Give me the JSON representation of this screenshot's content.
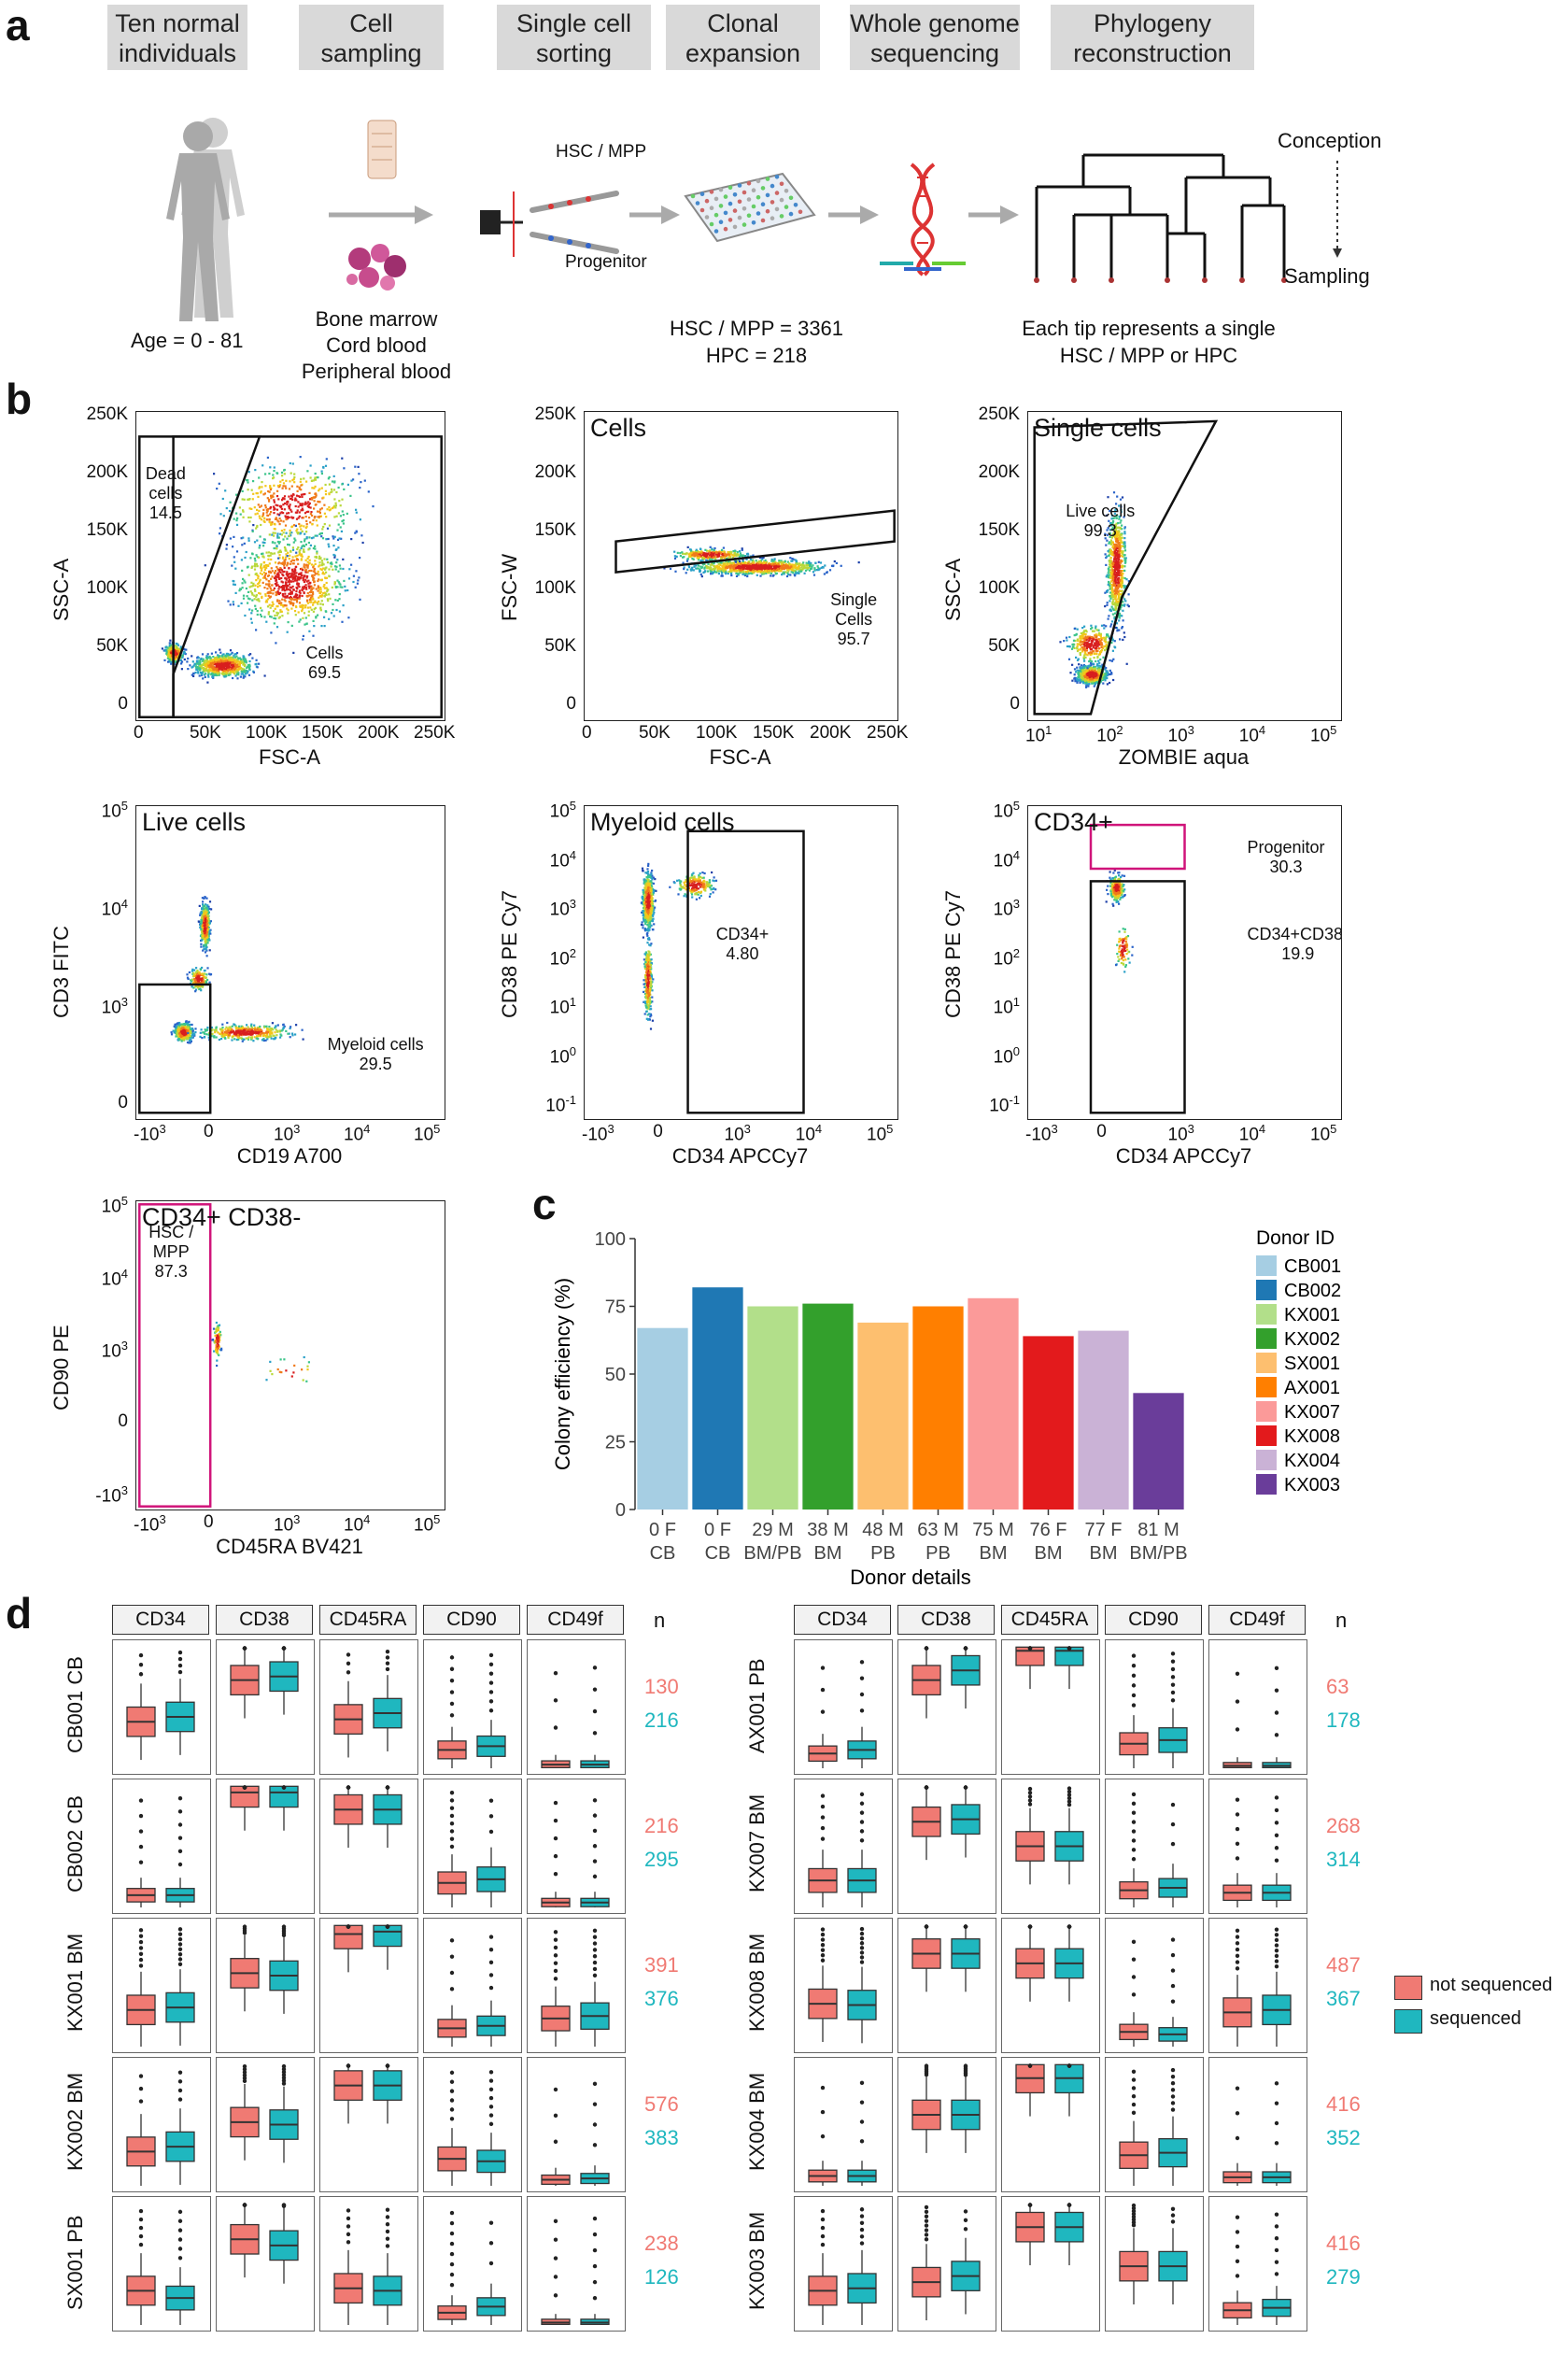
{
  "panel_a": {
    "letter": "a",
    "steps": [
      {
        "label_line1": "Ten normal",
        "label_line2": "individuals"
      },
      {
        "label_line1": "Cell",
        "label_line2": "sampling"
      },
      {
        "label_line1": "Single cell",
        "label_line2": "sorting"
      },
      {
        "label_line1": "Clonal",
        "label_line2": "expansion"
      },
      {
        "label_line1": "Whole genome",
        "label_line2": "sequencing"
      },
      {
        "label_line1": "Phylogeny",
        "label_line2": "reconstruction"
      }
    ],
    "age_text": "Age = 0 - 81",
    "sample_types": [
      "Bone marrow",
      "Cord blood",
      "Peripheral blood"
    ],
    "sort_hsc": "HSC / MPP",
    "sort_prog": "Progenitor",
    "counts_hsc": "HSC / MPP = 3361",
    "counts_hpc": "HPC = 218",
    "tip_line1": "Each tip represents a single",
    "tip_line2": "HSC / MPP or HPC",
    "conception": "Conception",
    "sampling": "Sampling"
  },
  "panel_b": {
    "letter": "b",
    "plots": [
      {
        "title": "",
        "xlabel": "FSC-A",
        "ylabel": "SSC-A",
        "yticks": [
          "250K",
          "200K",
          "150K",
          "100K",
          "50K",
          "0"
        ],
        "xticks": [
          "0",
          "50K",
          "100K",
          "150K",
          "200K",
          "250K"
        ],
        "gates": [
          {
            "name": "Dead",
            "l2": "cells",
            "val": "14.5"
          },
          {
            "name": "Cells",
            "val": "69.5"
          }
        ]
      },
      {
        "title": "Cells",
        "xlabel": "FSC-A",
        "ylabel": "FSC-W",
        "yticks": [
          "250K",
          "200K",
          "150K",
          "100K",
          "50K",
          "0"
        ],
        "xticks": [
          "0",
          "50K",
          "100K",
          "150K",
          "200K",
          "250K"
        ],
        "gates": [
          {
            "name": "Single Cells",
            "val": "95.7"
          }
        ]
      },
      {
        "title": "Single cells",
        "xlabel": "ZOMBIE aqua",
        "ylabel": "SSC-A",
        "yticks": [
          "250K",
          "200K",
          "150K",
          "100K",
          "50K",
          "0"
        ],
        "xticks": [
          "10",
          "10",
          "10",
          "10",
          "10"
        ],
        "xexp": [
          "1",
          "2",
          "3",
          "4",
          "5"
        ],
        "gates": [
          {
            "name": "Live cells",
            "val": "99.3"
          }
        ]
      },
      {
        "title": "Live cells",
        "xlabel": "CD19 A700",
        "ylabel": "CD3 FITC",
        "yticks": [
          "10",
          "10",
          "10",
          "0"
        ],
        "yexp": [
          "5",
          "4",
          "3",
          ""
        ],
        "xticks": [
          "-10",
          "0",
          "10",
          "10",
          "10"
        ],
        "xexp": [
          "3",
          "",
          "3",
          "4",
          "5"
        ],
        "gates": [
          {
            "name": "Myeloid cells",
            "val": "29.5"
          }
        ]
      },
      {
        "title": "Myeloid cells",
        "xlabel": "CD34 APCCy7",
        "ylabel": "CD38 PE Cy7",
        "yticks": [
          "10",
          "10",
          "10",
          "10",
          "10",
          "10",
          "10"
        ],
        "yexp": [
          "5",
          "4",
          "3",
          "2",
          "1",
          "0",
          "-1"
        ],
        "xticks": [
          "-10",
          "0",
          "10",
          "10",
          "10"
        ],
        "xexp": [
          "3",
          "",
          "3",
          "4",
          "5"
        ],
        "gates": [
          {
            "name": "CD34+",
            "val": "4.80"
          }
        ]
      },
      {
        "title": "CD34+",
        "xlabel": "CD34 APCCy7",
        "ylabel": "CD38 PE Cy7",
        "yticks": [
          "10",
          "10",
          "10",
          "10",
          "10",
          "10",
          "10"
        ],
        "yexp": [
          "5",
          "4",
          "3",
          "2",
          "1",
          "0",
          "-1"
        ],
        "xticks": [
          "-10",
          "0",
          "10",
          "10",
          "10"
        ],
        "xexp": [
          "3",
          "",
          "3",
          "4",
          "5"
        ],
        "gates": [
          {
            "name": "Progenitor",
            "val": "30.3"
          },
          {
            "name": "CD34+CD38-",
            "val": "19.9"
          }
        ]
      },
      {
        "title": "CD34+ CD38-",
        "xlabel": "CD45RA BV421",
        "ylabel": "CD90 PE",
        "yticks": [
          "10",
          "10",
          "10",
          "0",
          "-10"
        ],
        "yexp": [
          "5",
          "4",
          "3",
          "",
          "3"
        ],
        "xticks": [
          "-10",
          "0",
          "10",
          "10",
          "10"
        ],
        "xexp": [
          "3",
          "",
          "3",
          "4",
          "5"
        ],
        "gates": [
          {
            "name": "HSC /",
            "l2": "MPP",
            "val": "87.3"
          }
        ]
      }
    ]
  },
  "panel_c": {
    "letter": "c"
  },
  "chart_data": [
    {
      "type": "bar",
      "ylabel": "Colony efficiency (%)",
      "xlabel": "Donor details",
      "ylim": [
        0,
        100
      ],
      "yticks": [
        0,
        25,
        50,
        75,
        100
      ],
      "categories": [
        "CB001",
        "CB002",
        "KX001",
        "KX002",
        "SX001",
        "AX001",
        "KX007",
        "KX008",
        "KX004",
        "KX003"
      ],
      "xlab_line1": [
        "0 F",
        "0 F",
        "29 M",
        "38 M",
        "48 M",
        "63 M",
        "75 M",
        "76 F",
        "77 F",
        "81 M"
      ],
      "xlab_line2": [
        "CB",
        "CB",
        "BM/PB",
        "BM",
        "PB",
        "PB",
        "BM",
        "BM",
        "BM",
        "BM/PB"
      ],
      "values": [
        67,
        82,
        75,
        76,
        69,
        75,
        78,
        64,
        66,
        43
      ],
      "colors": [
        "#a6cee3",
        "#1f78b4",
        "#b2df8a",
        "#33a02c",
        "#fdbf6f",
        "#ff7f00",
        "#fb9a99",
        "#e31a1c",
        "#cab2d6",
        "#6a3d9a"
      ],
      "legend_title": "Donor ID"
    },
    {
      "type": "boxplot",
      "markers": [
        "CD34",
        "CD38",
        "CD45RA",
        "CD90",
        "CD49f"
      ],
      "n_label": "n",
      "legend": [
        {
          "name": "not sequenced",
          "color": "#f07a73"
        },
        {
          "name": "sequenced",
          "color": "#1fb7bf"
        }
      ],
      "rows_left": [
        {
          "label": "CB001 CB",
          "n_not": "130",
          "n_seq": "216",
          "med": [
            [
              0.38,
              0.42
            ],
            [
              0.72,
              0.75
            ],
            [
              0.4,
              0.45
            ],
            [
              0.15,
              0.18
            ],
            [
              0.03,
              0.03
            ]
          ]
        },
        {
          "label": "CB002 CB",
          "n_not": "216",
          "n_seq": "295",
          "med": [
            [
              0.1,
              0.1
            ],
            [
              0.94,
              0.94
            ],
            [
              0.8,
              0.8
            ],
            [
              0.2,
              0.23
            ],
            [
              0.04,
              0.04
            ]
          ]
        },
        {
          "label": "KX001 BM",
          "n_not": "391",
          "n_seq": "376",
          "med": [
            [
              0.3,
              0.32
            ],
            [
              0.6,
              0.58
            ],
            [
              0.92,
              0.94
            ],
            [
              0.15,
              0.17
            ],
            [
              0.23,
              0.25
            ]
          ]
        },
        {
          "label": "KX002 BM",
          "n_not": "576",
          "n_seq": "383",
          "med": [
            [
              0.28,
              0.32
            ],
            [
              0.52,
              0.5
            ],
            [
              0.82,
              0.82
            ],
            [
              0.22,
              0.2
            ],
            [
              0.05,
              0.06
            ]
          ]
        },
        {
          "label": "SX001 PB",
          "n_not": "238",
          "n_seq": "126",
          "med": [
            [
              0.28,
              0.22
            ],
            [
              0.7,
              0.65
            ],
            [
              0.3,
              0.28
            ],
            [
              0.1,
              0.15
            ],
            [
              0.02,
              0.02
            ]
          ]
        }
      ],
      "rows_right": [
        {
          "label": "AX001 PB",
          "n_not": "63",
          "n_seq": "178",
          "med": [
            [
              0.12,
              0.15
            ],
            [
              0.72,
              0.8
            ],
            [
              0.96,
              0.96
            ],
            [
              0.2,
              0.23
            ],
            [
              0.02,
              0.02
            ]
          ]
        },
        {
          "label": "KX007 BM",
          "n_not": "268",
          "n_seq": "314",
          "med": [
            [
              0.22,
              0.22
            ],
            [
              0.7,
              0.72
            ],
            [
              0.5,
              0.5
            ],
            [
              0.14,
              0.16
            ],
            [
              0.12,
              0.12
            ]
          ]
        },
        {
          "label": "KX008 BM",
          "n_not": "487",
          "n_seq": "367",
          "med": [
            [
              0.35,
              0.34
            ],
            [
              0.76,
              0.76
            ],
            [
              0.68,
              0.68
            ],
            [
              0.12,
              0.1
            ],
            [
              0.28,
              0.3
            ]
          ]
        },
        {
          "label": "KX004 BM",
          "n_not": "416",
          "n_seq": "352",
          "med": [
            [
              0.08,
              0.08
            ],
            [
              0.58,
              0.58
            ],
            [
              0.88,
              0.88
            ],
            [
              0.25,
              0.27
            ],
            [
              0.07,
              0.07
            ]
          ]
        },
        {
          "label": "KX003 BM",
          "n_not": "416",
          "n_seq": "279",
          "med": [
            [
              0.28,
              0.3
            ],
            [
              0.35,
              0.4
            ],
            [
              0.8,
              0.8
            ],
            [
              0.48,
              0.48
            ],
            [
              0.12,
              0.14
            ]
          ]
        }
      ]
    }
  ],
  "panel_d": {
    "letter": "d"
  }
}
